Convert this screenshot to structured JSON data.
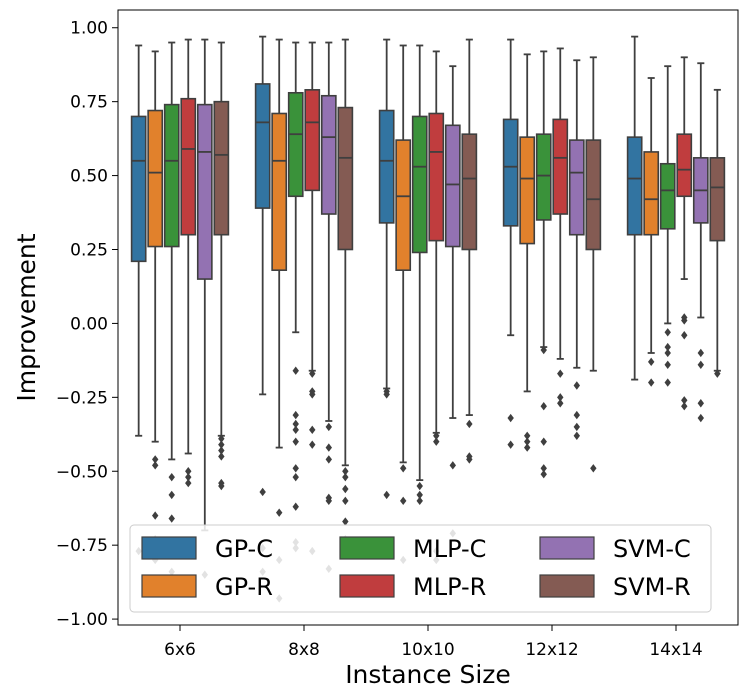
{
  "chart_data": {
    "type": "box",
    "xlabel": "Instance Size",
    "ylabel": "Improvement",
    "ylim": [
      -1.02,
      1.06
    ],
    "yticks": [
      1.0,
      0.75,
      0.5,
      0.25,
      0.0,
      -0.25,
      -0.5,
      -0.75,
      -1.0
    ],
    "ytick_labels": [
      "1.00",
      "0.75",
      "0.50",
      "0.25",
      "0.00",
      "−0.25",
      "−0.50",
      "−0.75",
      "−1.00"
    ],
    "categories": [
      "6x6",
      "8x8",
      "10x10",
      "12x12",
      "14x14"
    ],
    "legend": {
      "position": "lower-center",
      "ncol": 3
    },
    "series": [
      {
        "name": "GP-C",
        "color": "#3274a1",
        "boxes": [
          {
            "min": -0.38,
            "q1": 0.21,
            "median": 0.55,
            "q3": 0.7,
            "max": 0.94,
            "outliers": [
              -0.77
            ]
          },
          {
            "min": -0.24,
            "q1": 0.39,
            "median": 0.68,
            "q3": 0.81,
            "max": 0.97,
            "outliers": [
              -0.57,
              -0.76,
              -0.84
            ]
          },
          {
            "min": -0.22,
            "q1": 0.34,
            "median": 0.55,
            "q3": 0.72,
            "max": 0.96,
            "outliers": [
              -0.23,
              -0.24,
              -0.58
            ]
          },
          {
            "min": -0.04,
            "q1": 0.33,
            "median": 0.53,
            "q3": 0.69,
            "max": 0.96,
            "outliers": [
              -0.32,
              -0.41
            ]
          },
          {
            "min": -0.19,
            "q1": 0.3,
            "median": 0.49,
            "q3": 0.63,
            "max": 0.97,
            "outliers": []
          }
        ]
      },
      {
        "name": "GP-R",
        "color": "#e1812c",
        "boxes": [
          {
            "min": -0.4,
            "q1": 0.26,
            "median": 0.51,
            "q3": 0.72,
            "max": 0.92,
            "outliers": [
              -0.46,
              -0.48,
              -0.65,
              -0.73,
              -0.8
            ]
          },
          {
            "min": -0.42,
            "q1": 0.18,
            "median": 0.55,
            "q3": 0.71,
            "max": 0.96,
            "outliers": [
              -0.64,
              -0.8,
              -0.93
            ]
          },
          {
            "min": -0.47,
            "q1": 0.18,
            "median": 0.43,
            "q3": 0.62,
            "max": 0.94,
            "outliers": [
              -0.49,
              -0.6,
              -0.8
            ]
          },
          {
            "min": -0.23,
            "q1": 0.27,
            "median": 0.49,
            "q3": 0.63,
            "max": 0.91,
            "outliers": [
              -0.38,
              -0.42,
              -0.4
            ]
          },
          {
            "min": -0.1,
            "q1": 0.3,
            "median": 0.42,
            "q3": 0.58,
            "max": 0.83,
            "outliers": [
              -0.13,
              -0.2
            ]
          }
        ]
      },
      {
        "name": "MLP-C",
        "color": "#3a923a",
        "boxes": [
          {
            "min": -0.46,
            "q1": 0.26,
            "median": 0.55,
            "q3": 0.74,
            "max": 0.95,
            "outliers": [
              -0.52,
              -0.58,
              -0.66,
              -0.84
            ]
          },
          {
            "min": -0.03,
            "q1": 0.43,
            "median": 0.64,
            "q3": 0.78,
            "max": 0.95,
            "outliers": [
              -0.16,
              -0.31,
              -0.34,
              -0.36,
              -0.4,
              -0.49,
              -0.52,
              -0.62,
              -0.74,
              -0.76
            ]
          },
          {
            "min": -0.53,
            "q1": 0.24,
            "median": 0.53,
            "q3": 0.7,
            "max": 0.94,
            "outliers": [
              -0.55,
              -0.58,
              -0.6
            ]
          },
          {
            "min": -0.08,
            "q1": 0.35,
            "median": 0.5,
            "q3": 0.64,
            "max": 0.92,
            "outliers": [
              -0.09,
              -0.28,
              -0.4,
              -0.49,
              -0.51
            ]
          },
          {
            "min": 0.0,
            "q1": 0.32,
            "median": 0.45,
            "q3": 0.54,
            "max": 0.87,
            "outliers": [
              -0.03,
              -0.08,
              -0.1,
              -0.14,
              -0.2
            ]
          }
        ]
      },
      {
        "name": "MLP-R",
        "color": "#c03d3e",
        "boxes": [
          {
            "min": -0.44,
            "q1": 0.3,
            "median": 0.59,
            "q3": 0.76,
            "max": 0.96,
            "outliers": [
              -0.5,
              -0.52,
              -0.54,
              -0.78
            ]
          },
          {
            "min": -0.16,
            "q1": 0.45,
            "median": 0.68,
            "q3": 0.79,
            "max": 0.95,
            "outliers": [
              -0.17,
              -0.23,
              -0.24,
              -0.36,
              -0.41,
              -0.77
            ]
          },
          {
            "min": -0.37,
            "q1": 0.28,
            "median": 0.58,
            "q3": 0.71,
            "max": 0.92,
            "outliers": [
              -0.38,
              -0.4,
              -0.77,
              -0.8
            ]
          },
          {
            "min": -0.12,
            "q1": 0.37,
            "median": 0.56,
            "q3": 0.69,
            "max": 0.93,
            "outliers": [
              -0.17,
              -0.25,
              -0.27
            ]
          },
          {
            "min": 0.15,
            "q1": 0.43,
            "median": 0.52,
            "q3": 0.64,
            "max": 0.9,
            "outliers": [
              0.01,
              0.02,
              -0.04,
              -0.26,
              -0.28
            ]
          }
        ]
      },
      {
        "name": "SVM-C",
        "color": "#9372b2",
        "boxes": [
          {
            "min": -0.7,
            "q1": 0.15,
            "median": 0.58,
            "q3": 0.74,
            "max": 0.96,
            "outliers": [
              -0.85
            ]
          },
          {
            "min": -0.33,
            "q1": 0.37,
            "median": 0.63,
            "q3": 0.77,
            "max": 0.95,
            "outliers": [
              -0.35,
              -0.42,
              -0.46,
              -0.59,
              -0.6,
              -0.83
            ]
          },
          {
            "min": -0.32,
            "q1": 0.26,
            "median": 0.47,
            "q3": 0.67,
            "max": 0.87,
            "outliers": [
              -0.48,
              -0.71
            ]
          },
          {
            "min": -0.15,
            "q1": 0.3,
            "median": 0.51,
            "q3": 0.62,
            "max": 0.89,
            "outliers": [
              -0.21,
              -0.31,
              -0.35,
              -0.38
            ]
          },
          {
            "min": 0.02,
            "q1": 0.34,
            "median": 0.45,
            "q3": 0.56,
            "max": 0.88,
            "outliers": [
              -0.1,
              -0.14,
              -0.27,
              -0.32
            ]
          }
        ]
      },
      {
        "name": "SVM-R",
        "color": "#845b53",
        "boxes": [
          {
            "min": -0.38,
            "q1": 0.3,
            "median": 0.57,
            "q3": 0.75,
            "max": 0.95,
            "outliers": [
              -0.39,
              -0.41,
              -0.43,
              -0.45,
              -0.54,
              -0.55
            ]
          },
          {
            "min": -0.48,
            "q1": 0.25,
            "median": 0.56,
            "q3": 0.73,
            "max": 0.96,
            "outliers": [
              -0.5,
              -0.52,
              -0.56,
              -0.6,
              -0.67,
              -0.73
            ]
          },
          {
            "min": -0.31,
            "q1": 0.25,
            "median": 0.49,
            "q3": 0.64,
            "max": 0.96,
            "outliers": [
              -0.34,
              -0.45,
              -0.46
            ]
          },
          {
            "min": -0.16,
            "q1": 0.25,
            "median": 0.42,
            "q3": 0.62,
            "max": 0.9,
            "outliers": [
              -0.49
            ]
          },
          {
            "min": -0.16,
            "q1": 0.28,
            "median": 0.46,
            "q3": 0.56,
            "max": 0.79,
            "outliers": [
              -0.17
            ]
          }
        ]
      }
    ]
  }
}
